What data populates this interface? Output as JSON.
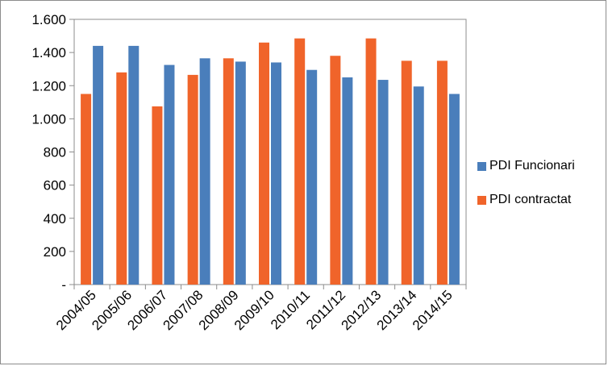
{
  "chart_data": {
    "type": "bar",
    "title": "",
    "xlabel": "",
    "ylabel": "",
    "ylim": [
      0,
      1600
    ],
    "y_ticks": [
      "-",
      "200",
      "400",
      "600",
      "800",
      "1.000",
      "1.200",
      "1.400",
      "1.600"
    ],
    "categories": [
      "2004/05",
      "2005/06",
      "2006/07",
      "2007/08",
      "2008/09",
      "2009/10",
      "2010/11",
      "2011/12",
      "2012/13",
      "2013/14",
      "2014/15"
    ],
    "series": [
      {
        "name": "PDI contractat",
        "color": "#f0642a",
        "values": [
          1150,
          1280,
          1075,
          1265,
          1365,
          1460,
          1485,
          1380,
          1485,
          1350,
          1350
        ]
      },
      {
        "name": "PDI Funcionari",
        "color": "#4a7ebb",
        "values": [
          1440,
          1440,
          1325,
          1365,
          1345,
          1340,
          1295,
          1250,
          1235,
          1195,
          1150
        ]
      }
    ],
    "legend_order": [
      1,
      0
    ],
    "legend_position": "right",
    "grid": false
  }
}
